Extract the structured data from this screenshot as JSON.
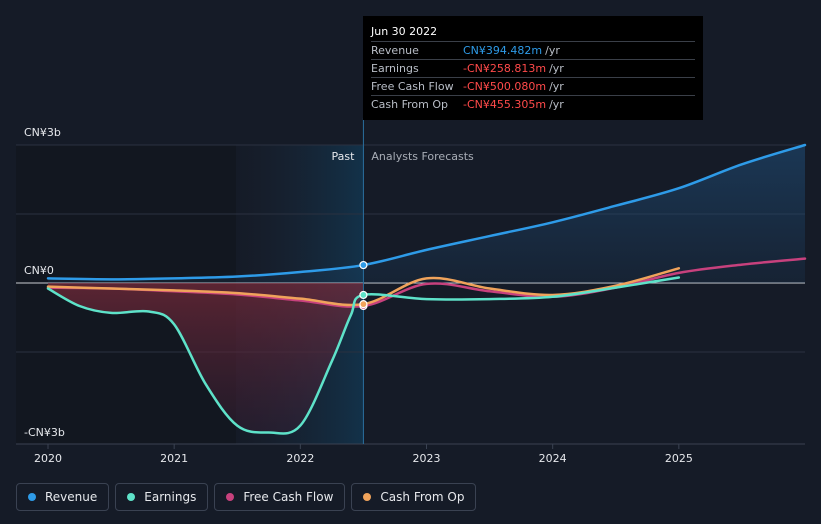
{
  "tooltip": {
    "date": "Jun 30 2022",
    "rows": [
      {
        "label": "Revenue",
        "value": "CN¥394.482m",
        "unit": "/yr",
        "color": "#2e9be8"
      },
      {
        "label": "Earnings",
        "value": "-CN¥258.813m",
        "unit": "/yr",
        "color": "#ff4a4a"
      },
      {
        "label": "Free Cash Flow",
        "value": "-CN¥500.080m",
        "unit": "/yr",
        "color": "#ff4a4a"
      },
      {
        "label": "Cash From Op",
        "value": "-CN¥455.305m",
        "unit": "/yr",
        "color": "#ff4a4a"
      }
    ]
  },
  "legend": [
    {
      "label": "Revenue",
      "color": "#2e9be8"
    },
    {
      "label": "Earnings",
      "color": "#5ee2c9"
    },
    {
      "label": "Free Cash Flow",
      "color": "#c7417d"
    },
    {
      "label": "Cash From Op",
      "color": "#f0a35b"
    }
  ],
  "chart_data": {
    "type": "line",
    "title": "",
    "xlabel": "",
    "ylabel": "",
    "ylim": [
      -3.5,
      3
    ],
    "y_unit": "CN¥ billions",
    "xlim": [
      2020.0,
      2026.0
    ],
    "y_tick_labels": [
      {
        "value": 3,
        "label": "CN¥3b"
      },
      {
        "value": 0,
        "label": "CN¥0"
      },
      {
        "value": -3,
        "label": "-CN¥3b"
      }
    ],
    "x_tick_labels": [
      "2020",
      "2021",
      "2022",
      "2023",
      "2024",
      "2025"
    ],
    "x_ticks": [
      2020,
      2021,
      2022,
      2023,
      2024,
      2025
    ],
    "divider_x": 2022.5,
    "shade_start_x": 2021.5,
    "past_label": "Past",
    "forecast_label": "Analysts Forecasts",
    "series": [
      {
        "name": "Revenue",
        "color": "#2e9be8",
        "x": [
          2020.0,
          2020.5,
          2021.0,
          2021.5,
          2022.0,
          2022.5,
          2023.0,
          2023.5,
          2024.0,
          2024.5,
          2025.0,
          2025.5,
          2026.0
        ],
        "y": [
          0.1,
          0.08,
          0.1,
          0.14,
          0.24,
          0.39,
          0.72,
          1.02,
          1.32,
          1.68,
          2.06,
          2.58,
          3.0
        ]
      },
      {
        "name": "Earnings",
        "color": "#5ee2c9",
        "x": [
          2020.0,
          2020.25,
          2020.5,
          2020.8,
          2021.0,
          2021.25,
          2021.5,
          2021.75,
          2022.0,
          2022.25,
          2022.4,
          2022.5,
          2023.0,
          2023.5,
          2024.0,
          2024.5,
          2025.0
        ],
        "y": [
          -0.12,
          -0.5,
          -0.65,
          -0.62,
          -0.9,
          -2.2,
          -3.1,
          -3.25,
          -3.1,
          -1.7,
          -0.7,
          -0.26,
          -0.35,
          -0.35,
          -0.3,
          -0.1,
          0.12
        ]
      },
      {
        "name": "Free Cash Flow",
        "color": "#c7417d",
        "x": [
          2020.0,
          2020.5,
          2021.0,
          2021.5,
          2022.0,
          2022.5,
          2023.0,
          2023.5,
          2024.0,
          2024.5,
          2025.0,
          2025.5,
          2026.0
        ],
        "y": [
          -0.1,
          -0.12,
          -0.18,
          -0.25,
          -0.38,
          -0.5,
          -0.02,
          -0.18,
          -0.3,
          -0.1,
          0.22,
          0.4,
          0.53
        ]
      },
      {
        "name": "Cash From Op",
        "color": "#f0a35b",
        "x": [
          2020.0,
          2020.5,
          2021.0,
          2021.5,
          2022.0,
          2022.5,
          2023.0,
          2023.5,
          2024.0,
          2024.5,
          2025.0
        ],
        "y": [
          -0.08,
          -0.12,
          -0.16,
          -0.22,
          -0.34,
          -0.46,
          0.1,
          -0.12,
          -0.26,
          -0.06,
          0.32
        ]
      }
    ]
  }
}
